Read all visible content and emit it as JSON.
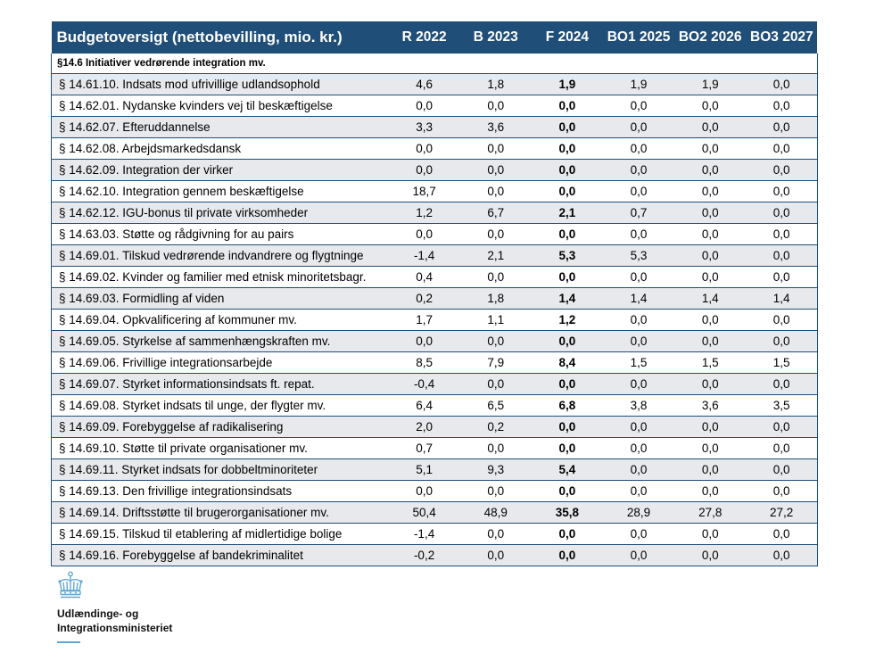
{
  "table": {
    "title": "Budgetoversigt (nettobevilling, mio. kr.)",
    "columns": [
      "R 2022",
      "B 2023",
      "F 2024",
      "BO1 2025",
      "BO2 2026",
      "BO3 2027"
    ],
    "section": "§14.6 Initiativer vedrørende integration mv.",
    "rows": [
      {
        "label": "§ 14.61.10. Indsats mod ufrivillige udlandsophold",
        "values": [
          "4,6",
          "1,8",
          "1,9",
          "1,9",
          "1,9",
          "0,0"
        ]
      },
      {
        "label": "§ 14.62.01. Nydanske kvinders vej til beskæftigelse",
        "values": [
          "0,0",
          "0,0",
          "0,0",
          "0,0",
          "0,0",
          "0,0"
        ]
      },
      {
        "label": "§ 14.62.07. Efteruddannelse",
        "values": [
          "3,3",
          "3,6",
          "0,0",
          "0,0",
          "0,0",
          "0,0"
        ]
      },
      {
        "label": "§ 14.62.08. Arbejdsmarkedsdansk",
        "values": [
          "0,0",
          "0,0",
          "0,0",
          "0,0",
          "0,0",
          "0,0"
        ]
      },
      {
        "label": "§ 14.62.09. Integration der virker",
        "values": [
          "0,0",
          "0,0",
          "0,0",
          "0,0",
          "0,0",
          "0,0"
        ]
      },
      {
        "label": "§ 14.62.10. Integration gennem beskæftigelse",
        "values": [
          "18,7",
          "0,0",
          "0,0",
          "0,0",
          "0,0",
          "0,0"
        ]
      },
      {
        "label": "§ 14.62.12. IGU-bonus til private virksomheder",
        "values": [
          "1,2",
          "6,7",
          "2,1",
          "0,7",
          "0,0",
          "0,0"
        ]
      },
      {
        "label": "§ 14.63.03. Støtte og rådgivning for au pairs",
        "values": [
          "0,0",
          "0,0",
          "0,0",
          "0,0",
          "0,0",
          "0,0"
        ]
      },
      {
        "label": "§ 14.69.01. Tilskud vedrørende indvandrere og flygtninge",
        "values": [
          "-1,4",
          "2,1",
          "5,3",
          "5,3",
          "0,0",
          "0,0"
        ]
      },
      {
        "label": "§ 14.69.02. Kvinder og familier med etnisk minoritetsbagr.",
        "values": [
          "0,4",
          "0,0",
          "0,0",
          "0,0",
          "0,0",
          "0,0"
        ]
      },
      {
        "label": "§ 14.69.03. Formidling af viden",
        "values": [
          "0,2",
          "1,8",
          "1,4",
          "1,4",
          "1,4",
          "1,4"
        ]
      },
      {
        "label": "§ 14.69.04. Opkvalificering af kommuner mv.",
        "values": [
          "1,7",
          "1,1",
          "1,2",
          "0,0",
          "0,0",
          "0,0"
        ]
      },
      {
        "label": "§ 14.69.05. Styrkelse af sammenhængskraften mv.",
        "values": [
          "0,0",
          "0,0",
          "0,0",
          "0,0",
          "0,0",
          "0,0"
        ]
      },
      {
        "label": "§ 14.69.06. Frivillige integrationsarbejde",
        "values": [
          "8,5",
          "7,9",
          "8,4",
          "1,5",
          "1,5",
          "1,5"
        ]
      },
      {
        "label": "§ 14.69.07. Styrket informationsindsats ft. repat.",
        "values": [
          "-0,4",
          "0,0",
          "0,0",
          "0,0",
          "0,0",
          "0,0"
        ]
      },
      {
        "label": "§ 14.69.08. Styrket indsats til unge, der flygter mv.",
        "values": [
          "6,4",
          "6,5",
          "6,8",
          "3,8",
          "3,6",
          "3,5"
        ]
      },
      {
        "label": "§ 14.69.09. Forebyggelse af radikalisering",
        "values": [
          "2,0",
          "0,2",
          "0,0",
          "0,0",
          "0,0",
          "0,0"
        ]
      },
      {
        "label": "§ 14.69.10. Støtte til private organisationer mv.",
        "values": [
          "0,7",
          "0,0",
          "0,0",
          "0,0",
          "0,0",
          "0,0"
        ]
      },
      {
        "label": "§ 14.69.11. Styrket indsats for dobbeltminoriteter",
        "values": [
          "5,1",
          "9,3",
          "5,4",
          "0,0",
          "0,0",
          "0,0"
        ]
      },
      {
        "label": "§ 14.69.13. Den frivillige integrationsindsats",
        "values": [
          "0,0",
          "0,0",
          "0,0",
          "0,0",
          "0,0",
          "0,0"
        ]
      },
      {
        "label": "§ 14.69.14. Driftsstøtte til brugerorganisationer mv.",
        "values": [
          "50,4",
          "48,9",
          "35,8",
          "28,9",
          "27,8",
          "27,2"
        ]
      },
      {
        "label": "§ 14.69.15. Tilskud til etablering af midlertidige bolige",
        "values": [
          "-1,4",
          "0,0",
          "0,0",
          "0,0",
          "0,0",
          "0,0"
        ]
      },
      {
        "label": "§ 14.69.16. Forebyggelse af bandekriminalitet",
        "values": [
          "-0,2",
          "0,0",
          "0,0",
          "0,0",
          "0,0",
          "0,0"
        ]
      }
    ]
  },
  "footer": {
    "logo_icon": "crown-icon",
    "org_line1": "Udlændinge- og",
    "org_line2": "Integrationsministeriet"
  },
  "colors": {
    "header_bg": "#1f4e79",
    "stripe": "#e8e9ec",
    "accent": "#5fa8d3"
  }
}
